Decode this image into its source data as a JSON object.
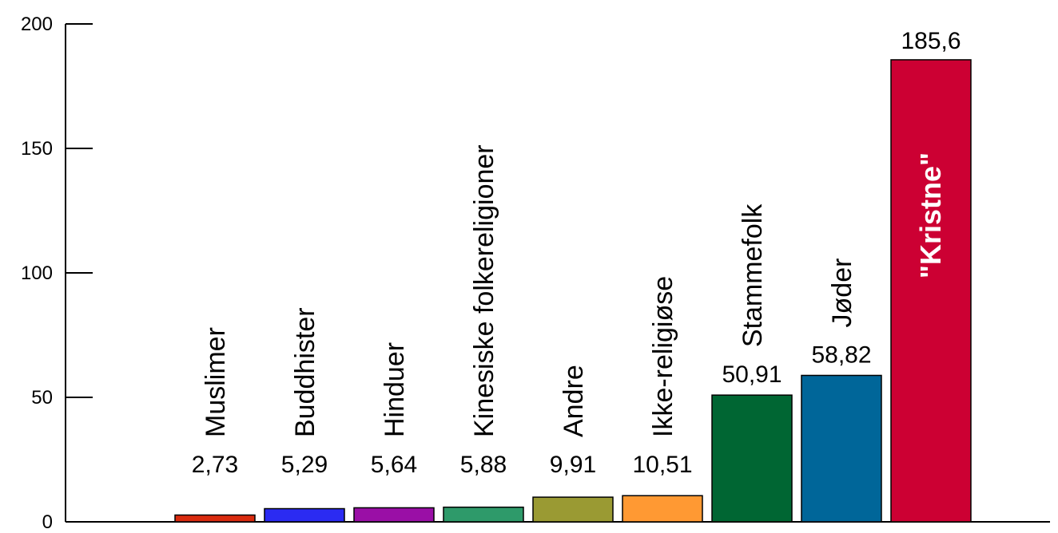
{
  "chart_data": {
    "type": "bar",
    "title": "",
    "xlabel": "",
    "ylabel": "",
    "ylim": [
      0,
      200
    ],
    "yticks": [
      0,
      50,
      100,
      150,
      200
    ],
    "ytick_labels": [
      "0",
      "50",
      "100",
      "150",
      "200"
    ],
    "grid": false,
    "legend": "none",
    "categories": [
      "Muslimer",
      "Buddhister",
      "Hinduer",
      "Kinesiske folkereligioner",
      "Andre",
      "Ikke-religiøse",
      "Stammefolk",
      "Jøder",
      "\"Kristne\""
    ],
    "values": [
      2.73,
      5.29,
      5.64,
      5.88,
      9.91,
      10.51,
      50.91,
      58.82,
      185.6
    ],
    "value_labels": [
      "2,73",
      "5,29",
      "5,64",
      "5,88",
      "9,91",
      "10,51",
      "50,91",
      "58,82",
      "185,6"
    ],
    "colors": [
      "#d92b0e",
      "#2b2bf2",
      "#9a0fa6",
      "#2e9a6a",
      "#9a9a33",
      "#ff9933",
      "#006633",
      "#006699",
      "#cc0033"
    ],
    "label_color_inside": "#ffffff"
  }
}
